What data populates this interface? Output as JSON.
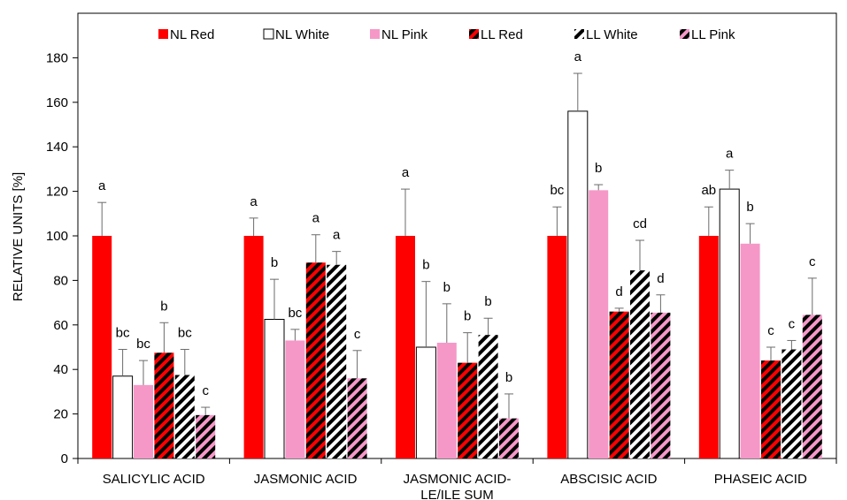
{
  "chart_data": {
    "type": "bar",
    "ylabel": "RELATIVE UNITS [%]",
    "xlabel": "",
    "ylim": [
      0,
      200
    ],
    "yticks": [
      0,
      20,
      40,
      60,
      80,
      100,
      120,
      140,
      160,
      180
    ],
    "grid": false,
    "legend_position": "top",
    "categories": [
      [
        "SALICYLIC ACID"
      ],
      [
        "JASMONIC ACID"
      ],
      [
        "JASMONIC ACID-",
        "LE/ILE SUM"
      ],
      [
        "ABSCISIC ACID"
      ],
      [
        "PHASEIC ACID"
      ]
    ],
    "series": [
      {
        "name": "NL Red",
        "color": "#ff0000",
        "pattern": "solid",
        "values": [
          100,
          100,
          100,
          100,
          100
        ],
        "errors": [
          15,
          8,
          21,
          13,
          13
        ],
        "labels": [
          "a",
          "a",
          "a",
          "bc",
          "ab"
        ]
      },
      {
        "name": "NL White",
        "color": "#ffffff",
        "pattern": "solid",
        "values": [
          37,
          62.5,
          50,
          156,
          121
        ],
        "errors": [
          12,
          18,
          29.5,
          17,
          8.5
        ],
        "labels": [
          "bc",
          "b",
          "b",
          "a",
          "a"
        ]
      },
      {
        "name": "NL Pink",
        "color": "#f598c8",
        "pattern": "solid",
        "values": [
          33,
          53,
          52,
          120.5,
          96.5
        ],
        "errors": [
          11,
          5,
          17.5,
          2.5,
          9
        ],
        "labels": [
          "bc",
          "bc",
          "b",
          "b",
          "b"
        ]
      },
      {
        "name": "LL Red",
        "color": "#ff0000",
        "pattern": "stripe",
        "values": [
          47.5,
          88,
          43,
          66,
          44
        ],
        "errors": [
          13.5,
          12.5,
          13.5,
          1.5,
          6
        ],
        "labels": [
          "b",
          "a",
          "b",
          "d",
          "c"
        ]
      },
      {
        "name": "LL White",
        "color": "#ffffff",
        "pattern": "stripe",
        "values": [
          37.5,
          87,
          55.5,
          84.5,
          49
        ],
        "errors": [
          11.5,
          6,
          7.5,
          13.5,
          4
        ],
        "labels": [
          "bc",
          "a",
          "b",
          "cd",
          "c"
        ]
      },
      {
        "name": "LL Pink",
        "color": "#f598c8",
        "pattern": "stripe",
        "values": [
          19.5,
          36,
          18,
          65.5,
          64.5
        ],
        "errors": [
          3.5,
          12.5,
          11,
          8,
          16.5
        ],
        "labels": [
          "c",
          "c",
          "b",
          "d",
          "c"
        ]
      }
    ]
  }
}
